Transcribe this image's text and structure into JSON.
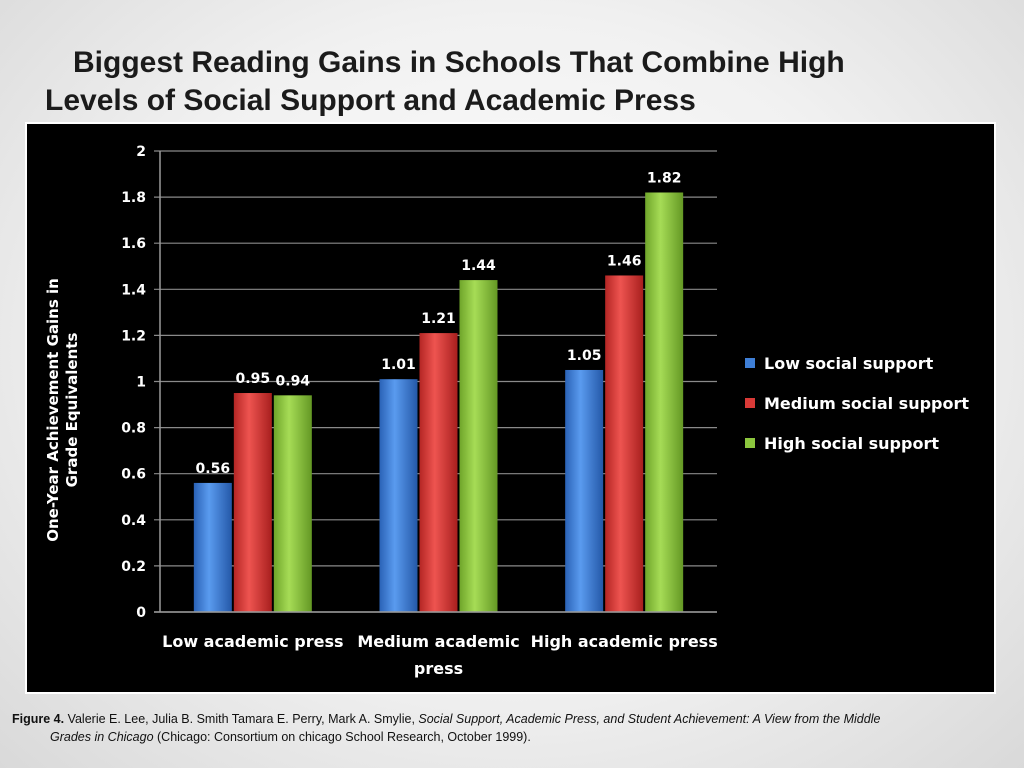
{
  "slide": {
    "title_line1": "Biggest Reading Gains in Schools That Combine High",
    "title_line2": "Levels of Social Support and Academic Press"
  },
  "caption": {
    "figure_label": "Figure 4.",
    "authors": " Valerie E. Lee, Julia B. Smith Tamara E. Perry, Mark A. Smylie, ",
    "title_part1": "Social Support, Academic Press, and Student Achievement: A View from the Middle",
    "title_part2": "Grades in Chicago",
    "publisher": " (Chicago: Consortium on chicago School Research, October 1999)."
  },
  "chart_data": {
    "type": "bar",
    "title": "",
    "xlabel": "",
    "ylabel": "One-Year Achievement Gains in Grade Equivalents",
    "ylim": [
      0,
      2
    ],
    "yticks": [
      "0",
      "0.2",
      "0.4",
      "0.6",
      "0.8",
      "1",
      "1.2",
      "1.4",
      "1.6",
      "1.8",
      "2"
    ],
    "grid": true,
    "legend_position": "right",
    "categories": [
      [
        "Low academic press"
      ],
      [
        "Medium academic",
        "press"
      ],
      [
        "High academic press"
      ]
    ],
    "series": [
      {
        "name": "Low social support",
        "values": [
          0.56,
          1.01,
          1.05
        ],
        "labels": [
          "0.56",
          "1.01",
          "1.05"
        ],
        "color": "#3f7fd6"
      },
      {
        "name": "Medium social support",
        "values": [
          0.95,
          1.21,
          1.46
        ],
        "labels": [
          "0.95",
          "1.21",
          "1.46"
        ],
        "color": "#d93a37"
      },
      {
        "name": "High social support",
        "values": [
          0.94,
          1.44,
          1.82
        ],
        "labels": [
          "0.94",
          "1.44",
          "1.82"
        ],
        "color": "#8cc63e"
      }
    ]
  }
}
